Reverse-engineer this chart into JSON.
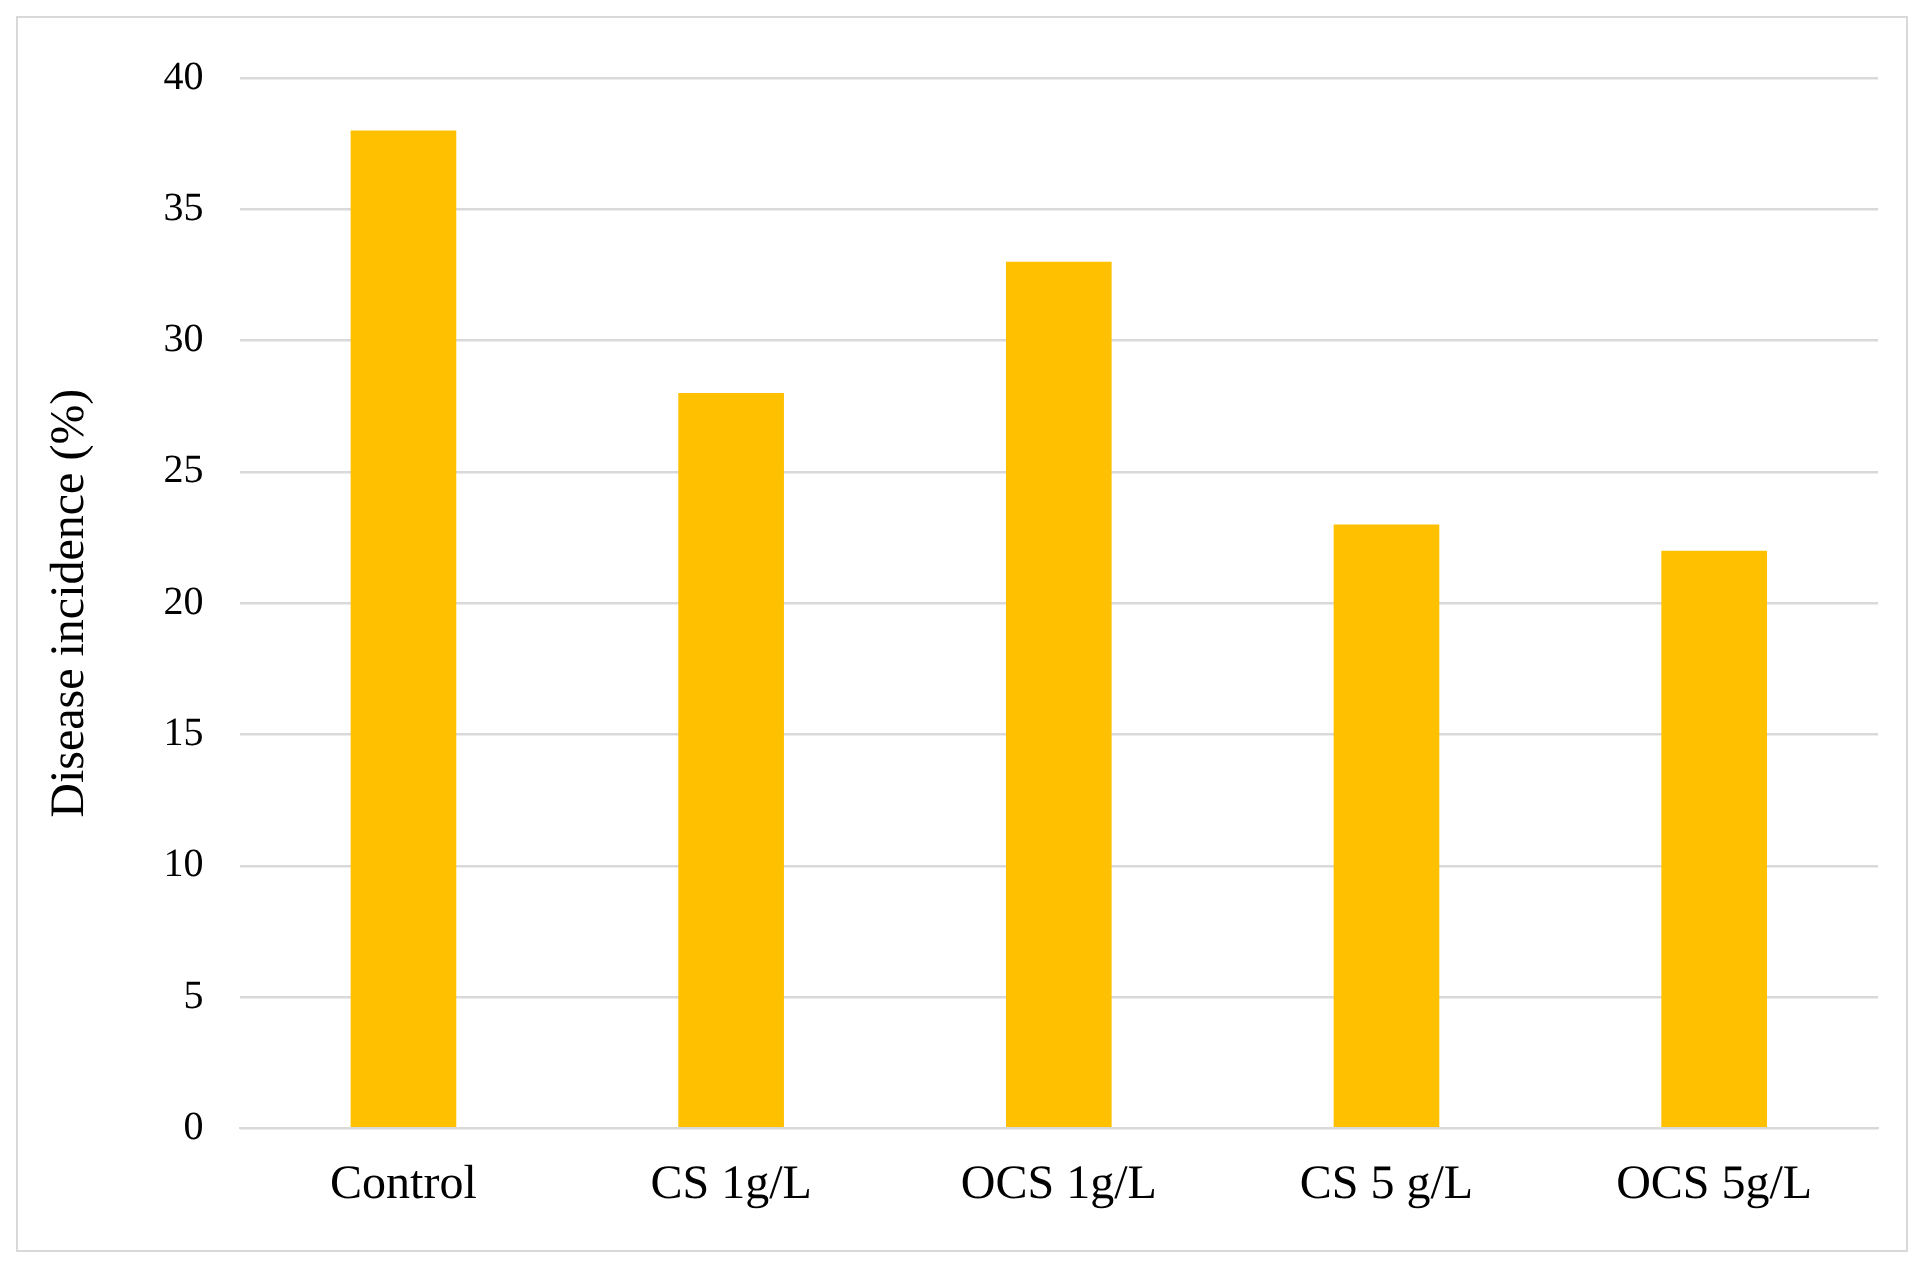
{
  "chart_data": {
    "type": "bar",
    "ylabel": "Disease incidence (%)",
    "categories": [
      "Control",
      "CS 1g/L",
      "OCS 1g/L",
      "CS 5 g/L",
      "OCS 5g/L"
    ],
    "values": [
      38,
      28,
      33,
      23,
      22
    ],
    "color": "#ffc000",
    "ylim": [
      0,
      40
    ],
    "yticks": [
      0,
      5,
      10,
      15,
      20,
      25,
      30,
      35,
      40
    ],
    "grid": "y",
    "legend": false
  }
}
